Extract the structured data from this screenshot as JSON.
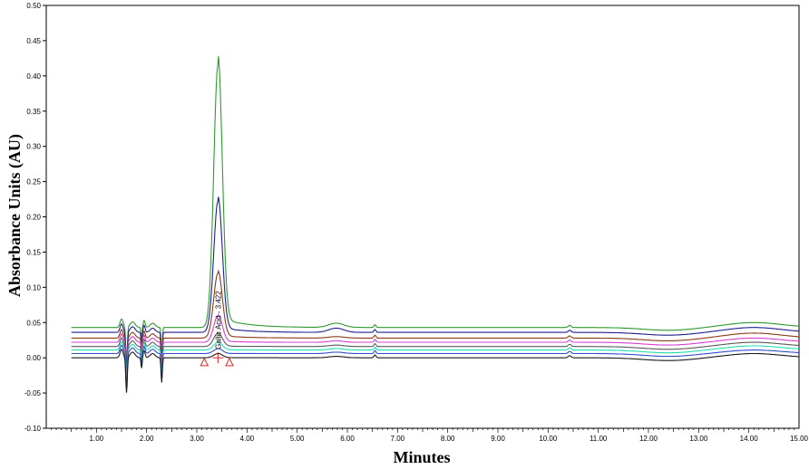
{
  "chart_data": {
    "type": "line",
    "xlabel": "Minutes",
    "ylabel": "Absorbance Units (AU)",
    "xlim": [
      0,
      15.0
    ],
    "ylim": [
      -0.1,
      0.5
    ],
    "x_ticks": [
      "1.00",
      "2.00",
      "3.00",
      "4.00",
      "5.00",
      "6.00",
      "7.00",
      "8.00",
      "9.00",
      "10.00",
      "11.00",
      "12.00",
      "13.00",
      "14.00",
      "15.00"
    ],
    "y_ticks": [
      "-0.10",
      "-0.05",
      "0.00",
      "0.05",
      "0.10",
      "0.15",
      "0.20",
      "0.25",
      "0.30",
      "0.35",
      "0.40",
      "0.45",
      "0.50"
    ],
    "grid": false,
    "peak_annotation": "Gallic Acid - 3.422",
    "peak_retention_time": 3.422,
    "peak_integration_start": 3.15,
    "peak_integration_end": 3.65,
    "series": [
      {
        "color": "#2e9a2e",
        "baseline": 0.043,
        "peak_height": 0.415,
        "late_bump": 0.05,
        "end": 0.045
      },
      {
        "color": "#1f1f8f",
        "baseline": 0.036,
        "peak_height": 0.222,
        "late_bump": 0.043,
        "end": 0.038
      },
      {
        "color": "#8b3a1a",
        "baseline": 0.028,
        "peak_height": 0.12,
        "late_bump": 0.035,
        "end": 0.03
      },
      {
        "color": "#d63fd6",
        "baseline": 0.022,
        "peak_height": 0.06,
        "late_bump": 0.028,
        "end": 0.024
      },
      {
        "color": "#5a5a5a",
        "baseline": 0.016,
        "peak_height": 0.035,
        "late_bump": 0.022,
        "end": 0.018
      },
      {
        "color": "#20e0b0",
        "baseline": 0.011,
        "peak_height": 0.022,
        "late_bump": 0.017,
        "end": 0.013
      },
      {
        "color": "#3050d0",
        "baseline": 0.006,
        "peak_height": 0.013,
        "late_bump": 0.011,
        "end": 0.008
      },
      {
        "color": "#1a1a1a",
        "baseline": 0.0,
        "peak_height": 0.006,
        "late_bump": 0.006,
        "end": 0.002
      }
    ]
  }
}
